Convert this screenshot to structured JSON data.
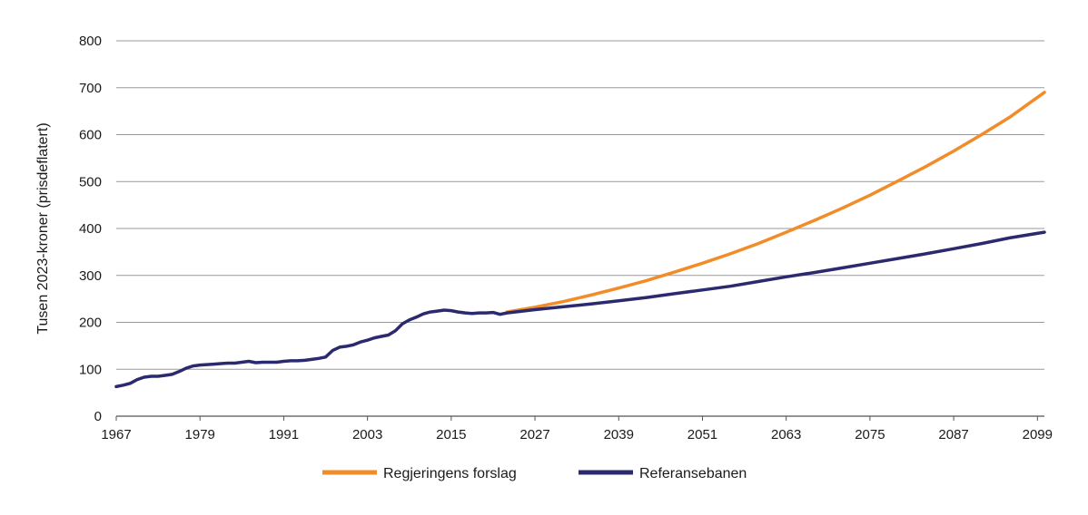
{
  "chart_data": {
    "type": "line",
    "title": "",
    "xlabel": "",
    "ylabel": "Tusen  2023-kroner (prisdeflatert)",
    "xlim": [
      1967,
      2100
    ],
    "ylim": [
      0,
      800
    ],
    "x_ticks": [
      "1967",
      "1979",
      "1991",
      "2003",
      "2015",
      "2027",
      "2039",
      "2051",
      "2063",
      "2075",
      "2087",
      "2099"
    ],
    "y_ticks": [
      "0",
      "100",
      "200",
      "300",
      "400",
      "500",
      "600",
      "700",
      "800"
    ],
    "grid": "horizontal",
    "legend_position": "bottom",
    "series": [
      {
        "name": "Regjeringens forslag",
        "color": "#f28c28",
        "points": [
          [
            2023,
            222
          ],
          [
            2027,
            232
          ],
          [
            2031,
            244
          ],
          [
            2035,
            258
          ],
          [
            2039,
            273
          ],
          [
            2043,
            289
          ],
          [
            2047,
            307
          ],
          [
            2051,
            326
          ],
          [
            2055,
            346
          ],
          [
            2059,
            368
          ],
          [
            2063,
            392
          ],
          [
            2067,
            417
          ],
          [
            2071,
            443
          ],
          [
            2075,
            471
          ],
          [
            2079,
            501
          ],
          [
            2083,
            532
          ],
          [
            2087,
            565
          ],
          [
            2091,
            600
          ],
          [
            2095,
            637
          ],
          [
            2100,
            690
          ]
        ]
      },
      {
        "name": "Referansebanen",
        "color": "#2b2a6e",
        "points": [
          [
            1967,
            63
          ],
          [
            1968,
            66
          ],
          [
            1969,
            70
          ],
          [
            1970,
            78
          ],
          [
            1971,
            83
          ],
          [
            1972,
            85
          ],
          [
            1973,
            85
          ],
          [
            1974,
            87
          ],
          [
            1975,
            89
          ],
          [
            1976,
            95
          ],
          [
            1977,
            102
          ],
          [
            1978,
            107
          ],
          [
            1979,
            109
          ],
          [
            1980,
            110
          ],
          [
            1981,
            111
          ],
          [
            1982,
            112
          ],
          [
            1983,
            113
          ],
          [
            1984,
            113
          ],
          [
            1985,
            115
          ],
          [
            1986,
            117
          ],
          [
            1987,
            114
          ],
          [
            1988,
            115
          ],
          [
            1989,
            115
          ],
          [
            1990,
            115
          ],
          [
            1991,
            117
          ],
          [
            1992,
            118
          ],
          [
            1993,
            118
          ],
          [
            1994,
            119
          ],
          [
            1995,
            121
          ],
          [
            1996,
            123
          ],
          [
            1997,
            126
          ],
          [
            1998,
            140
          ],
          [
            1999,
            147
          ],
          [
            2000,
            149
          ],
          [
            2001,
            152
          ],
          [
            2002,
            158
          ],
          [
            2003,
            162
          ],
          [
            2004,
            167
          ],
          [
            2005,
            170
          ],
          [
            2006,
            173
          ],
          [
            2007,
            182
          ],
          [
            2008,
            197
          ],
          [
            2009,
            205
          ],
          [
            2010,
            211
          ],
          [
            2011,
            218
          ],
          [
            2012,
            222
          ],
          [
            2013,
            224
          ],
          [
            2014,
            226
          ],
          [
            2015,
            225
          ],
          [
            2016,
            222
          ],
          [
            2017,
            220
          ],
          [
            2018,
            219
          ],
          [
            2019,
            220
          ],
          [
            2020,
            220
          ],
          [
            2021,
            221
          ],
          [
            2022,
            217
          ],
          [
            2023,
            220
          ],
          [
            2027,
            227
          ],
          [
            2031,
            233
          ],
          [
            2035,
            239
          ],
          [
            2039,
            246
          ],
          [
            2043,
            253
          ],
          [
            2047,
            261
          ],
          [
            2051,
            269
          ],
          [
            2055,
            277
          ],
          [
            2059,
            287
          ],
          [
            2063,
            297
          ],
          [
            2067,
            306
          ],
          [
            2071,
            316
          ],
          [
            2075,
            326
          ],
          [
            2079,
            336
          ],
          [
            2083,
            346
          ],
          [
            2087,
            357
          ],
          [
            2091,
            368
          ],
          [
            2095,
            380
          ],
          [
            2100,
            392
          ]
        ]
      }
    ]
  }
}
